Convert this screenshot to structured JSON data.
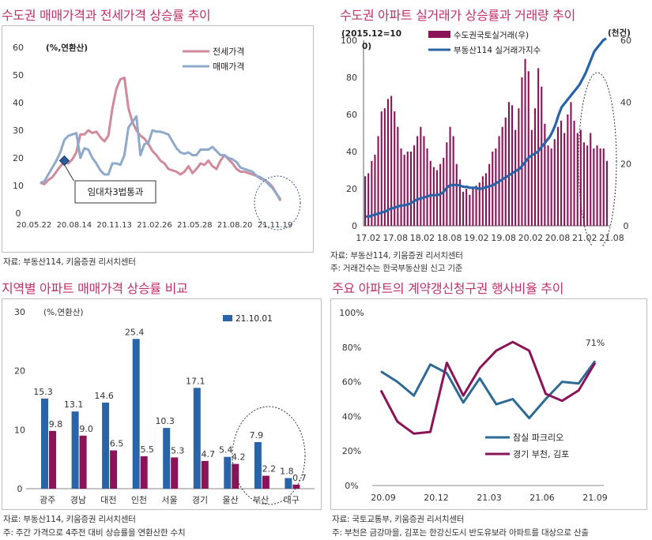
{
  "colors": {
    "title": "#c0306a",
    "pink": "#d18a9c",
    "lightblue": "#8fa9cc",
    "crimson": "#8b1458",
    "navy": "#2a64a8",
    "steel": "#2d6a96",
    "marker": "#2b5a98",
    "dash": "#334e7a"
  },
  "panel1": {
    "title": "수도권 매매가격과 전세가격 상승률 추이",
    "source": "자료: 부동산114, 키움증권 리서치센터",
    "annotation": "임대차3법통과",
    "chart_data": {
      "type": "line",
      "unit_label": "(%,연환산)",
      "x_ticks": [
        "20.05.22",
        "20.08.14",
        "20.11.13",
        "21.02.26",
        "21.05.28",
        "21.08.20",
        "21.11.19"
      ],
      "ylim": [
        0,
        60
      ],
      "y_ticks": [
        0,
        10,
        20,
        30,
        40,
        50,
        60
      ],
      "series": [
        {
          "name": "전세가격",
          "values": [
            11,
            10.5,
            12,
            13,
            15,
            17,
            18.5,
            18,
            19.5,
            22,
            28.5,
            28.5,
            30,
            29,
            29.5,
            27.5,
            26,
            28,
            38,
            45,
            48.5,
            49,
            38,
            33,
            30,
            28,
            27,
            25,
            22.5,
            21,
            19,
            18,
            16,
            15.5,
            15,
            14,
            15,
            17,
            14.5,
            16,
            18,
            17.5,
            19,
            17,
            16,
            19,
            21,
            19.5,
            18,
            16,
            15,
            15,
            14.5,
            14,
            13.5,
            12.5,
            12,
            11,
            9.5,
            7,
            4.5
          ]
        },
        {
          "name": "매매가격",
          "values": [
            11,
            11.5,
            14,
            16.5,
            19,
            22,
            26.5,
            28,
            28.5,
            29,
            20,
            23.5,
            23,
            20,
            18,
            15.5,
            14,
            14,
            18,
            18,
            17.5,
            21,
            31,
            33,
            35,
            21,
            25,
            25.5,
            30,
            29.5,
            29.5,
            29,
            28.5,
            26,
            23.5,
            22,
            21.5,
            22,
            21,
            21,
            23,
            23,
            23,
            24,
            22.5,
            21,
            21,
            20,
            19.5,
            18.5,
            16.5,
            16,
            15.5,
            15,
            13.5,
            13,
            12,
            10.5,
            9,
            7,
            5
          ]
        }
      ]
    }
  },
  "panel2": {
    "title": "수도권 아파트 실거래가 상승률과 거래량 추이",
    "source1": "자료: 부동산114, 키움증권 리서치센터",
    "source2": "주: 거래건수는 한국부동산원 신고 기준",
    "chart_data": {
      "type": "bar",
      "left_axis_label": [
        "(2015.12=10",
        "0)"
      ],
      "right_axis_label": "(천건)",
      "x_ticks": [
        "17.02",
        "17.08",
        "18.02",
        "18.08",
        "19.02",
        "19.08",
        "20.02",
        "20.08",
        "21.02",
        "21.08"
      ],
      "ylim_left": [
        0,
        100
      ],
      "y_ticks_left": [
        0,
        20,
        40,
        60,
        80,
        100
      ],
      "ylim_right": [
        0,
        60
      ],
      "y_ticks_right": [
        0,
        20,
        40,
        60
      ],
      "series": [
        {
          "name": "수도권국토실거래(우)",
          "type": "bar",
          "axis": "right",
          "values": [
            16,
            17,
            21,
            23,
            29,
            37,
            38,
            41,
            42,
            37,
            32,
            25,
            23,
            24,
            24,
            26,
            29,
            32,
            29,
            25,
            21,
            19,
            18,
            20,
            22,
            27,
            32,
            29,
            20,
            15,
            11,
            12,
            10,
            12,
            13,
            14,
            16,
            17,
            20,
            24,
            25,
            29,
            32,
            35,
            40,
            39,
            31,
            38,
            48,
            54,
            50,
            31,
            38,
            51,
            45,
            33,
            26,
            25,
            28,
            32,
            34,
            30,
            36,
            40,
            34,
            30,
            31,
            27,
            26,
            30,
            25,
            26,
            25,
            25,
            21
          ]
        },
        {
          "name": "부동산114 실거래가지수",
          "type": "line",
          "axis": "left",
          "values": [
            5,
            5,
            5.5,
            6,
            6.5,
            7,
            7.5,
            8,
            9,
            9.5,
            10,
            10.5,
            11,
            11,
            11.5,
            12,
            13,
            14,
            14.5,
            15,
            15.5,
            16,
            16.5,
            16.5,
            16.5,
            17,
            18,
            20,
            21.5,
            22,
            22,
            22,
            21.5,
            21,
            21,
            20.5,
            20.5,
            20.5,
            20,
            20,
            20.5,
            21,
            21.5,
            22,
            23,
            24,
            25,
            26,
            27,
            28,
            29,
            30,
            31,
            33,
            35,
            37,
            38,
            39,
            40,
            42,
            44,
            46,
            48,
            51,
            55,
            60,
            64,
            66,
            68,
            70,
            72,
            74,
            76,
            79,
            82,
            86,
            90,
            94,
            96,
            98,
            100,
            101
          ]
        }
      ]
    }
  },
  "panel3": {
    "title": "지역별 아파트 매매가격 상승률 비교",
    "source1": "자료: 부동산114, 키움증권 리서치센터",
    "source2": "주: 주간 가격으로 4주전 대비 상승률을 연환산한 수치",
    "chart_data": {
      "type": "bar",
      "unit_label": "(%,연환산)",
      "categories": [
        "광주",
        "경남",
        "대전",
        "인천",
        "서울",
        "경기",
        "울산",
        "부산",
        "대구"
      ],
      "ylim": [
        0,
        30
      ],
      "y_ticks": [
        0,
        10,
        20,
        30
      ],
      "series": [
        {
          "name": "21.10.01",
          "values": [
            15.3,
            13.1,
            14.6,
            25.4,
            10.3,
            17.1,
            5.4,
            7.9,
            1.8
          ]
        },
        {
          "name": "",
          "values": [
            9.8,
            9.0,
            6.5,
            5.5,
            5.3,
            4.7,
            4.2,
            2.2,
            0.7
          ]
        }
      ]
    }
  },
  "panel4": {
    "title": "주요 아파트의 계약갱신청구권 행사비율 추이",
    "source1": "자료: 국토교통부, 키움증권 리서치센터",
    "source2": "주: 부천은 금강마을, 김포는 한강신도시 반도유보라 아파트를 대상으로 산출",
    "annotation": "71%",
    "chart_data": {
      "type": "line",
      "x_ticks": [
        "20.09",
        "20.12",
        "21.03",
        "21.06",
        "21.09"
      ],
      "ylim": [
        0,
        100
      ],
      "y_ticks": [
        "0%",
        "20%",
        "40%",
        "60%",
        "80%",
        "100%"
      ],
      "series": [
        {
          "name": "잠실 파크리오",
          "values": [
            66,
            60,
            52,
            70,
            65,
            48,
            62,
            47,
            50,
            39,
            50,
            60,
            59,
            72
          ]
        },
        {
          "name": "경기 부천, 김포",
          "values": [
            55,
            37,
            30,
            31,
            71,
            52,
            68,
            78,
            83,
            78,
            53,
            49,
            55,
            71
          ]
        }
      ]
    }
  }
}
